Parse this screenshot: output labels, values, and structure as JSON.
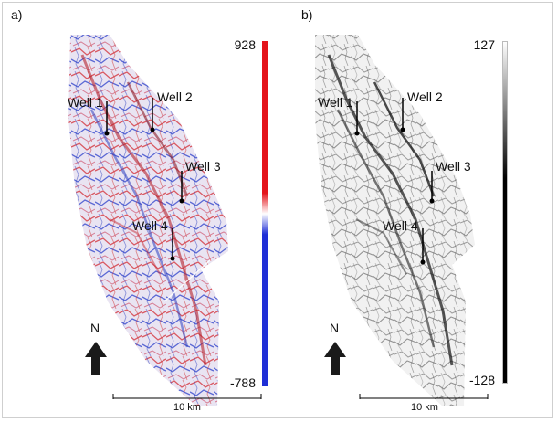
{
  "panels": [
    {
      "label": "a)",
      "colorbar": {
        "max": "928",
        "min": "-788",
        "colors": [
          "#e4141b",
          "#ffffff",
          "#1f2fd6"
        ]
      },
      "wells": [
        "Well 1",
        "Well 2",
        "Well 3",
        "Well 4"
      ],
      "north": "N",
      "scale_label": "10 km"
    },
    {
      "label": "b)",
      "colorbar": {
        "max": "127",
        "min": "-128",
        "colors": [
          "#ffffff",
          "#000000"
        ]
      },
      "wells": [
        "Well 1",
        "Well 2",
        "Well 3",
        "Well 4"
      ],
      "north": "N",
      "scale_label": "10 km"
    }
  ]
}
